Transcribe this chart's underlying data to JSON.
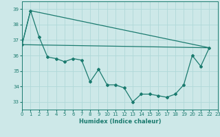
{
  "xlabel": "Humidex (Indice chaleur)",
  "background_color": "#cde8e8",
  "grid_color": "#b0d8d8",
  "line_color": "#1a7a6e",
  "xlim": [
    0,
    23
  ],
  "ylim": [
    32.5,
    39.5
  ],
  "yticks": [
    33,
    34,
    35,
    36,
    37,
    38,
    39
  ],
  "xticks": [
    0,
    1,
    2,
    3,
    4,
    5,
    6,
    7,
    8,
    9,
    10,
    11,
    12,
    13,
    14,
    15,
    16,
    17,
    18,
    19,
    20,
    21,
    22,
    23
  ],
  "zigzag_x": [
    0,
    1,
    2,
    3,
    4,
    5,
    6,
    7,
    8,
    9,
    10,
    11,
    12,
    13,
    14,
    15,
    16,
    17,
    18,
    19,
    20,
    21,
    22
  ],
  "zigzag_y": [
    36.7,
    38.9,
    37.2,
    35.9,
    35.8,
    35.6,
    35.8,
    35.7,
    34.3,
    35.1,
    34.1,
    34.1,
    33.9,
    33.0,
    33.5,
    33.5,
    33.4,
    33.3,
    33.5,
    34.1,
    36.0,
    35.3,
    36.5
  ],
  "line1_x": [
    0,
    22
  ],
  "line1_y": [
    36.7,
    36.5
  ],
  "line2_x": [
    0,
    1,
    22
  ],
  "line2_y": [
    36.7,
    38.9,
    36.5
  ]
}
